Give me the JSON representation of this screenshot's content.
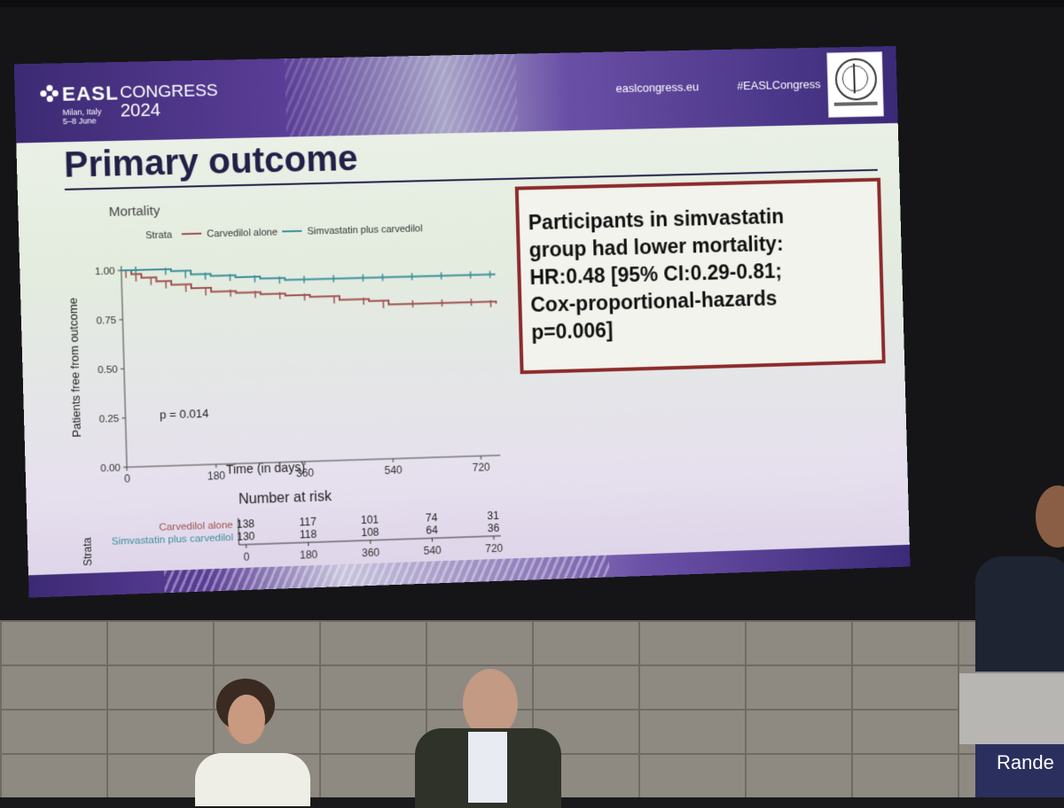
{
  "header": {
    "logo_text": "EASL",
    "logo_subtitle": "CONGRESS",
    "logo_year": "2024",
    "location_line1": "Milan, Italy",
    "location_line2": "5–8 June",
    "website": "easlcongress.eu",
    "hashtag": "#EASLCongress"
  },
  "slide": {
    "title": "Primary outcome"
  },
  "callout": {
    "lines": [
      "Participants in simvastatin",
      "group had lower mortality:",
      "HR:0.48 [95% CI:0.29-0.81;",
      "Cox-proportional-hazards",
      "p=0.006]"
    ]
  },
  "podium_text": "Rande",
  "colors": {
    "carvedilol": "#a0524f",
    "simvastatin": "#3d8f9a",
    "banner_dark": "#3c2a73",
    "callout_border": "#8d2a2c"
  },
  "chart_data": {
    "type": "line",
    "title": "Mortality",
    "legend_title": "Strata",
    "legend_position": "top",
    "xlabel": "Time (in days)",
    "ylabel": "Patients free from outcome",
    "x_ticks": [
      0,
      180,
      360,
      540,
      720
    ],
    "y_ticks": [
      "0.00",
      "0.25",
      "0.50",
      "0.75",
      "1.00"
    ],
    "xlim": [
      0,
      760
    ],
    "ylim": [
      0,
      1.0
    ],
    "annotation": "p = 0.014",
    "series": [
      {
        "name": "Carvedilol alone",
        "color": "#a0524f",
        "x": [
          0,
          20,
          40,
          70,
          100,
          140,
          180,
          230,
          280,
          330,
          380,
          440,
          500,
          540,
          600,
          660,
          720,
          760
        ],
        "y": [
          1.0,
          0.98,
          0.96,
          0.94,
          0.92,
          0.9,
          0.88,
          0.87,
          0.86,
          0.85,
          0.84,
          0.82,
          0.81,
          0.79,
          0.79,
          0.79,
          0.79,
          0.78
        ]
      },
      {
        "name": "Simvastatin plus carvedilol",
        "color": "#3d8f9a",
        "x": [
          0,
          40,
          100,
          140,
          180,
          230,
          280,
          330,
          380,
          440,
          500,
          540,
          600,
          660,
          720,
          760
        ],
        "y": [
          1.0,
          1.0,
          0.99,
          0.97,
          0.96,
          0.95,
          0.94,
          0.93,
          0.93,
          0.93,
          0.93,
          0.93,
          0.93,
          0.93,
          0.93,
          0.93
        ]
      }
    ],
    "risk_table": {
      "title": "Number at risk",
      "strata_label": "Strata",
      "xlabel": "Time (in days)",
      "times": [
        0,
        180,
        360,
        540,
        720
      ],
      "rows": [
        {
          "name": "Carvedilol alone",
          "color": "#a0524f",
          "values": [
            138,
            117,
            101,
            74,
            31
          ]
        },
        {
          "name": "Simvastatin plus carvedilol",
          "color": "#3d8f9a",
          "values": [
            130,
            118,
            108,
            64,
            36
          ]
        }
      ]
    }
  }
}
